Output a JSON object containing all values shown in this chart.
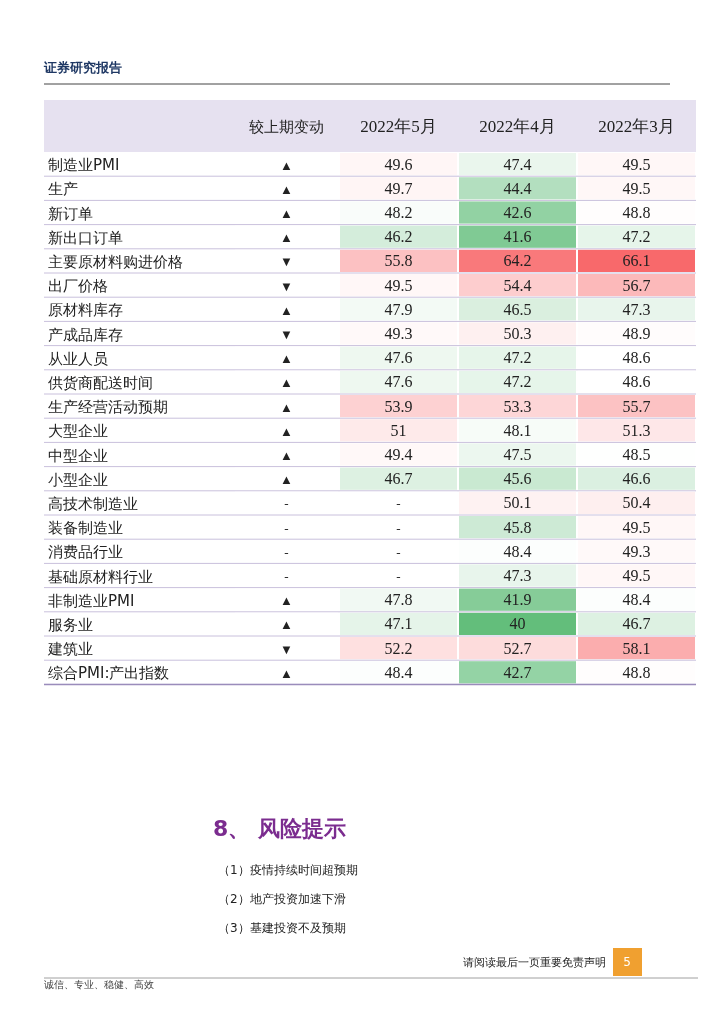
{
  "chart_data": {
    "type": "heatmap",
    "categories": [
      "较上期变动",
      "2022年5月",
      "2022年4月",
      "2022年3月"
    ],
    "y_categories": [
      "制造业PMI",
      "生产",
      "新订单",
      "新出口订单",
      "主要原材料购进价格",
      "出厂价格",
      "原材料库存",
      "产成品库存",
      "从业人员",
      "供货商配送时间",
      "生产经营活动预期",
      "大型企业",
      "中型企业",
      "小型企业",
      "高技术制造业",
      "装备制造业",
      "消费品行业",
      "基础原材料行业",
      "非制造业PMI",
      "服务业",
      "建筑业",
      "综合PMI:产出指数"
    ],
    "cells": [
      [
        null,
        49.6,
        47.4,
        49.5
      ],
      [
        null,
        49.7,
        44.4,
        49.5
      ],
      [
        null,
        48.2,
        42.6,
        48.8
      ],
      [
        null,
        46.2,
        41.6,
        47.2
      ],
      [
        null,
        55.8,
        64.2,
        66.1
      ],
      [
        null,
        49.5,
        54.4,
        56.7
      ],
      [
        null,
        47.9,
        46.5,
        47.3
      ],
      [
        null,
        49.3,
        50.3,
        48.9
      ],
      [
        null,
        47.6,
        47.2,
        48.6
      ],
      [
        null,
        47.6,
        47.2,
        48.6
      ],
      [
        null,
        53.9,
        53.3,
        55.7
      ],
      [
        null,
        51,
        48.1,
        51.3
      ],
      [
        null,
        49.4,
        47.5,
        48.5
      ],
      [
        null,
        46.7,
        45.6,
        46.6
      ],
      [
        null,
        null,
        50.1,
        50.4
      ],
      [
        null,
        null,
        45.8,
        49.5
      ],
      [
        null,
        null,
        48.4,
        49.3
      ],
      [
        null,
        null,
        47.3,
        49.5
      ],
      [
        null,
        47.8,
        41.9,
        48.4
      ],
      [
        null,
        47.1,
        40,
        46.7
      ],
      [
        null,
        52.2,
        52.7,
        58.1
      ],
      [
        null,
        48.4,
        42.7,
        48.8
      ]
    ],
    "cell_labels": [
      [
        "▲",
        "49.6",
        "47.4",
        "49.5"
      ],
      [
        "▲",
        "49.7",
        "44.4",
        "49.5"
      ],
      [
        "▲",
        "48.2",
        "42.6",
        "48.8"
      ],
      [
        "▲",
        "46.2",
        "41.6",
        "47.2"
      ],
      [
        "▼",
        "55.8",
        "64.2",
        "66.1"
      ],
      [
        "▼",
        "49.5",
        "54.4",
        "56.7"
      ],
      [
        "▲",
        "47.9",
        "46.5",
        "47.3"
      ],
      [
        "▼",
        "49.3",
        "50.3",
        "48.9"
      ],
      [
        "▲",
        "47.6",
        "47.2",
        "48.6"
      ],
      [
        "▲",
        "47.6",
        "47.2",
        "48.6"
      ],
      [
        "▲",
        "53.9",
        "53.3",
        "55.7"
      ],
      [
        "▲",
        "51",
        "48.1",
        "51.3"
      ],
      [
        "▲",
        "49.4",
        "47.5",
        "48.5"
      ],
      [
        "▲",
        "46.7",
        "45.6",
        "46.6"
      ],
      [
        "-",
        "-",
        "50.1",
        "50.4"
      ],
      [
        "-",
        "-",
        "45.8",
        "49.5"
      ],
      [
        "-",
        "-",
        "48.4",
        "49.3"
      ],
      [
        "-",
        "-",
        "47.3",
        "49.5"
      ],
      [
        "▲",
        "47.8",
        "41.9",
        "48.4"
      ],
      [
        "▲",
        "47.1",
        "40",
        "46.7"
      ],
      [
        "▼",
        "52.2",
        "52.7",
        "58.1"
      ],
      [
        "▲",
        "48.4",
        "42.7",
        "48.8"
      ]
    ],
    "annotations": [
      "证券研究报告",
      "8、 风险提示",
      "（1）疫情持续时间超预期",
      "（2）地产投资加速下滑",
      "（3）基建投资不及预期",
      "请阅读最后一页重要免责声明",
      "5",
      "诚信、专业、稳健、高效"
    ]
  }
}
